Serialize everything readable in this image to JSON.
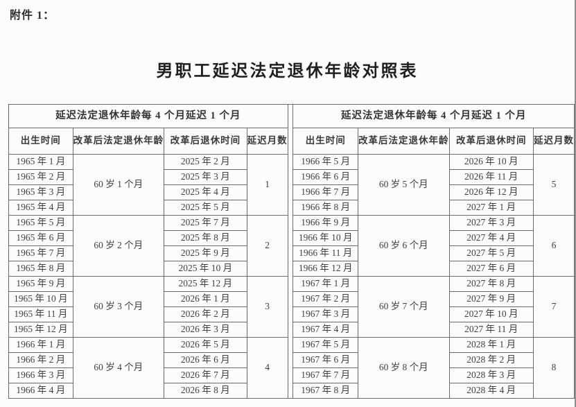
{
  "page": {
    "attachment_label": "附件 1：",
    "title": "男职工延迟法定退休年龄对照表"
  },
  "table": {
    "group_header": "延迟法定退休年龄每 4 个月延迟 1 个月",
    "columns": [
      "出生时间",
      "改革后法定退休年龄",
      "改革后退休时间",
      "延迟月数"
    ],
    "halves": [
      {
        "groups": [
          {
            "birth_months": [
              "1965 年 1 月",
              "1965 年 2 月",
              "1965 年 3 月",
              "1965 年 4 月"
            ],
            "new_retirement_age": "60 岁 1 个月",
            "retirement_months": [
              "2025 年 2 月",
              "2025 年 3 月",
              "2025 年 4 月",
              "2025 年 5 月"
            ],
            "delay_months": "1"
          },
          {
            "birth_months": [
              "1965 年 5 月",
              "1965 年 6 月",
              "1965 年 7 月",
              "1965 年 8 月"
            ],
            "new_retirement_age": "60 岁 2 个月",
            "retirement_months": [
              "2025 年 7 月",
              "2025 年 8 月",
              "2025 年 9 月",
              "2025 年 10 月"
            ],
            "delay_months": "2"
          },
          {
            "birth_months": [
              "1965 年 9 月",
              "1965 年 10 月",
              "1965 年 11 月",
              "1965 年 12 月"
            ],
            "new_retirement_age": "60 岁 3 个月",
            "retirement_months": [
              "2025 年 12 月",
              "2026 年 1 月",
              "2026 年 2 月",
              "2026 年 3 月"
            ],
            "delay_months": "3"
          },
          {
            "birth_months": [
              "1966 年 1 月",
              "1966 年 2 月",
              "1966 年 3 月",
              "1966 年 4 月"
            ],
            "new_retirement_age": "60 岁 4 个月",
            "retirement_months": [
              "2026 年 5 月",
              "2026 年 6 月",
              "2026 年 7 月",
              "2026 年 8 月"
            ],
            "delay_months": "4"
          }
        ]
      },
      {
        "groups": [
          {
            "birth_months": [
              "1966 年 5 月",
              "1966 年 6 月",
              "1966 年 7 月",
              "1966 年 8 月"
            ],
            "new_retirement_age": "60 岁 5 个月",
            "retirement_months": [
              "2026 年 10 月",
              "2026 年 11 月",
              "2026 年 12 月",
              "2027 年 1 月"
            ],
            "delay_months": "5"
          },
          {
            "birth_months": [
              "1966 年 9 月",
              "1966 年 10 月",
              "1966 年 11 月",
              "1966 年 12 月"
            ],
            "new_retirement_age": "60 岁 6 个月",
            "retirement_months": [
              "2027 年 3 月",
              "2027 年 4 月",
              "2027 年 5 月",
              "2027 年 6 月"
            ],
            "delay_months": "6"
          },
          {
            "birth_months": [
              "1967 年 1 月",
              "1967 年 2 月",
              "1967 年 3 月",
              "1967 年 4 月"
            ],
            "new_retirement_age": "60 岁 7 个月",
            "retirement_months": [
              "2027 年 8 月",
              "2027 年 9 月",
              "2027 年 10 月",
              "2027 年 11 月"
            ],
            "delay_months": "7"
          },
          {
            "birth_months": [
              "1967 年 5 月",
              "1967 年 6 月",
              "1967 年 7 月",
              "1967 年 8 月"
            ],
            "new_retirement_age": "60 岁 8 个月",
            "retirement_months": [
              "2028 年 1 月",
              "2028 年 2 月",
              "2028 年 3 月",
              "2028 年 4 月"
            ],
            "delay_months": "8"
          }
        ]
      }
    ]
  }
}
